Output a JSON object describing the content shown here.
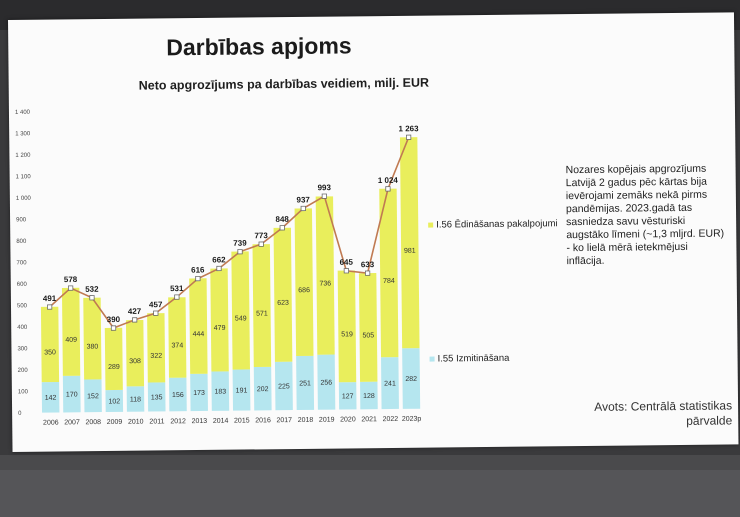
{
  "slide": {
    "title": "Darbības apjoms",
    "note": "Nozares kopējais apgrozījums Latvijā 2 gadus pēc kārtas bija ievērojami zemāks nekā pirms pandēmijas. 2023.gadā tas sasniedza savu vēsturiski augstāko līmeni (~1,3 mljrd. EUR) - ko lielā mērā ietekmējusi inflācija.",
    "source": "Avots: Centrālā statistikas pārvalde"
  },
  "colors": {
    "food_service": "#e9ee5c",
    "accommodation": "#b5e6ef",
    "total_line": "#c07a52"
  },
  "chart_data": {
    "type": "bar",
    "stacked": true,
    "title": "Neto apgrozījums pa darbības veidiem, milj. EUR",
    "categories": [
      "2006",
      "2007",
      "2008",
      "2009",
      "2010",
      "2011",
      "2012",
      "2013",
      "2014",
      "2015",
      "2016",
      "2017",
      "2018",
      "2019",
      "2020",
      "2021",
      "2022",
      "2023p"
    ],
    "series": [
      {
        "name": "I.55 Izmitināšana",
        "values": [
          142,
          170,
          152,
          102,
          118,
          135,
          156,
          173,
          183,
          191,
          202,
          225,
          251,
          256,
          127,
          128,
          241,
          282
        ]
      },
      {
        "name": "I.56 Ēdināšanas pakalpojumi",
        "values": [
          350,
          409,
          380,
          289,
          308,
          322,
          374,
          444,
          479,
          549,
          571,
          623,
          686,
          736,
          519,
          505,
          784,
          981
        ]
      }
    ],
    "totals": [
      491,
      578,
      532,
      390,
      427,
      457,
      531,
      616,
      662,
      739,
      773,
      848,
      937,
      993,
      645,
      633,
      1024,
      1263
    ],
    "total_labels": [
      "491",
      "578",
      "532",
      "390",
      "427",
      "457",
      "531",
      "616",
      "662",
      "739",
      "773",
      "848",
      "937",
      "993",
      "645",
      "633",
      "1 024",
      "1 263"
    ],
    "y_ticks": [
      "0",
      "100",
      "200",
      "300",
      "400",
      "500",
      "600",
      "700",
      "800",
      "900",
      "1 000",
      "1 100",
      "1 200",
      "1 300",
      "1 400"
    ],
    "ylim": [
      0,
      1400
    ],
    "xlabel": "",
    "ylabel": "",
    "legend_placement": "right",
    "grid": false
  }
}
